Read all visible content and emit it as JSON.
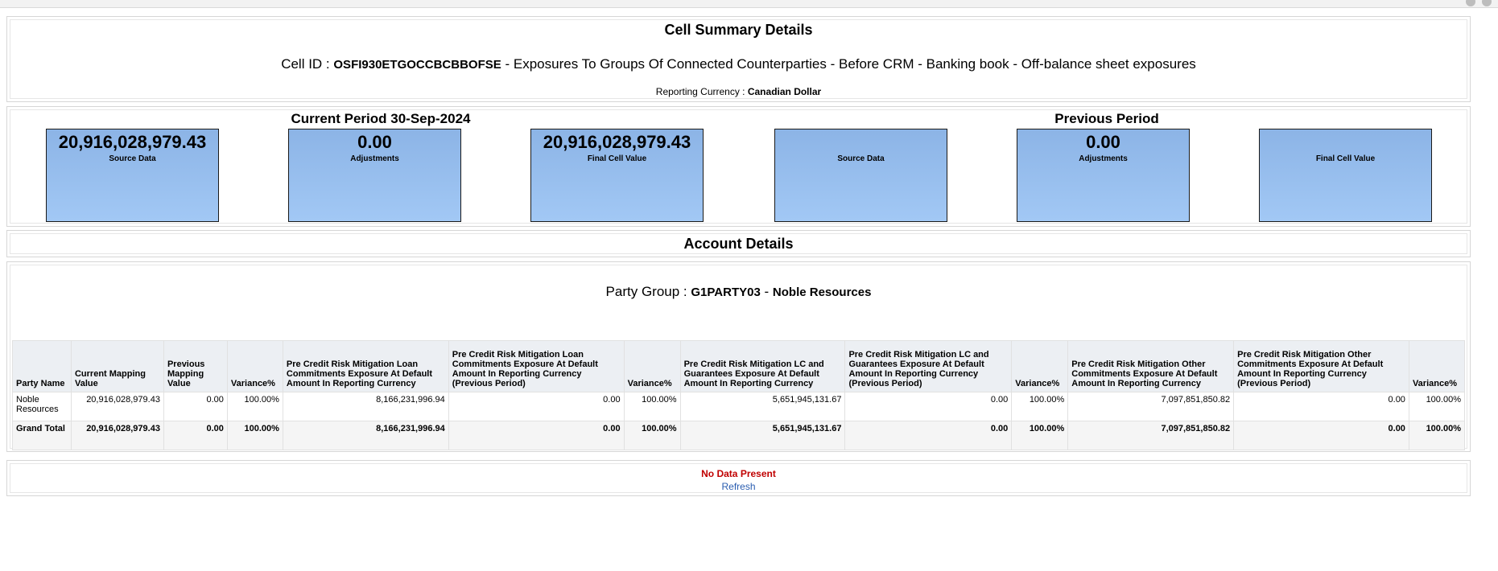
{
  "header": {
    "title": "Cell Summary Details",
    "cell_prefix": "Cell ID : ",
    "cell_id": "OSFI930ETGOCCBCBBOFSE",
    "cell_desc": " - Exposures To Groups Of Connected Counterparties - Before CRM - Banking book - Off-balance sheet exposures",
    "currency_label": "Reporting Currency : ",
    "currency_value": "Canadian Dollar"
  },
  "periods": {
    "current_title": "Current Period 30-Sep-2024",
    "previous_title": "Previous Period",
    "current": [
      {
        "value": "20,916,028,979.43",
        "label": "Source Data"
      },
      {
        "value": "0.00",
        "label": "Adjustments"
      },
      {
        "value": "20,916,028,979.43",
        "label": "Final Cell Value"
      }
    ],
    "previous": [
      {
        "value": "",
        "label": "Source Data"
      },
      {
        "value": "0.00",
        "label": "Adjustments"
      },
      {
        "value": "",
        "label": "Final Cell Value"
      }
    ]
  },
  "account": {
    "title": "Account Details",
    "party_prefix": "Party Group : ",
    "party_code": "G1PARTY03",
    "party_sep": " - ",
    "party_name": "Noble Resources"
  },
  "table": {
    "headers": [
      "Party Name",
      "Current Mapping Value",
      "Previous Mapping Value",
      "Variance%",
      "Pre Credit Risk Mitigation Loan Commitments Exposure At Default Amount In Reporting Currency",
      "Pre Credit Risk Mitigation Loan Commitments Exposure At Default Amount In Reporting Currency (Previous Period)",
      "Variance%",
      "Pre Credit Risk Mitigation LC and Guarantees Exposure At Default Amount In Reporting Currency",
      "Pre Credit Risk Mitigation LC and Guarantees Exposure At Default Amount In Reporting Currency (Previous Period)",
      "Variance%",
      "Pre Credit Risk Mitigation Other Commitments Exposure At Default Amount In Reporting Currency",
      "Pre Credit Risk Mitigation Other Commitments Exposure At Default Amount In Reporting Currency (Previous Period)",
      "Variance%"
    ],
    "rows": [
      [
        "Noble Resources",
        "20,916,028,979.43",
        "0.00",
        "100.00%",
        "8,166,231,996.94",
        "0.00",
        "100.00%",
        "5,651,945,131.67",
        "0.00",
        "100.00%",
        "7,097,851,850.82",
        "0.00",
        "100.00%"
      ]
    ],
    "total": [
      "Grand Total",
      "20,916,028,979.43",
      "0.00",
      "100.00%",
      "8,166,231,996.94",
      "0.00",
      "100.00%",
      "5,651,945,131.67",
      "0.00",
      "100.00%",
      "7,097,851,850.82",
      "0.00",
      "100.00%"
    ]
  },
  "footer": {
    "no_data": "No Data Present",
    "refresh": "Refresh"
  },
  "colors": {
    "tile_top": "#8cb4e6",
    "tile_bottom": "#a2c8f5",
    "no_data": "#c00000",
    "link": "#2a5db0"
  },
  "icons": [
    "gear-icon",
    "help-icon"
  ]
}
